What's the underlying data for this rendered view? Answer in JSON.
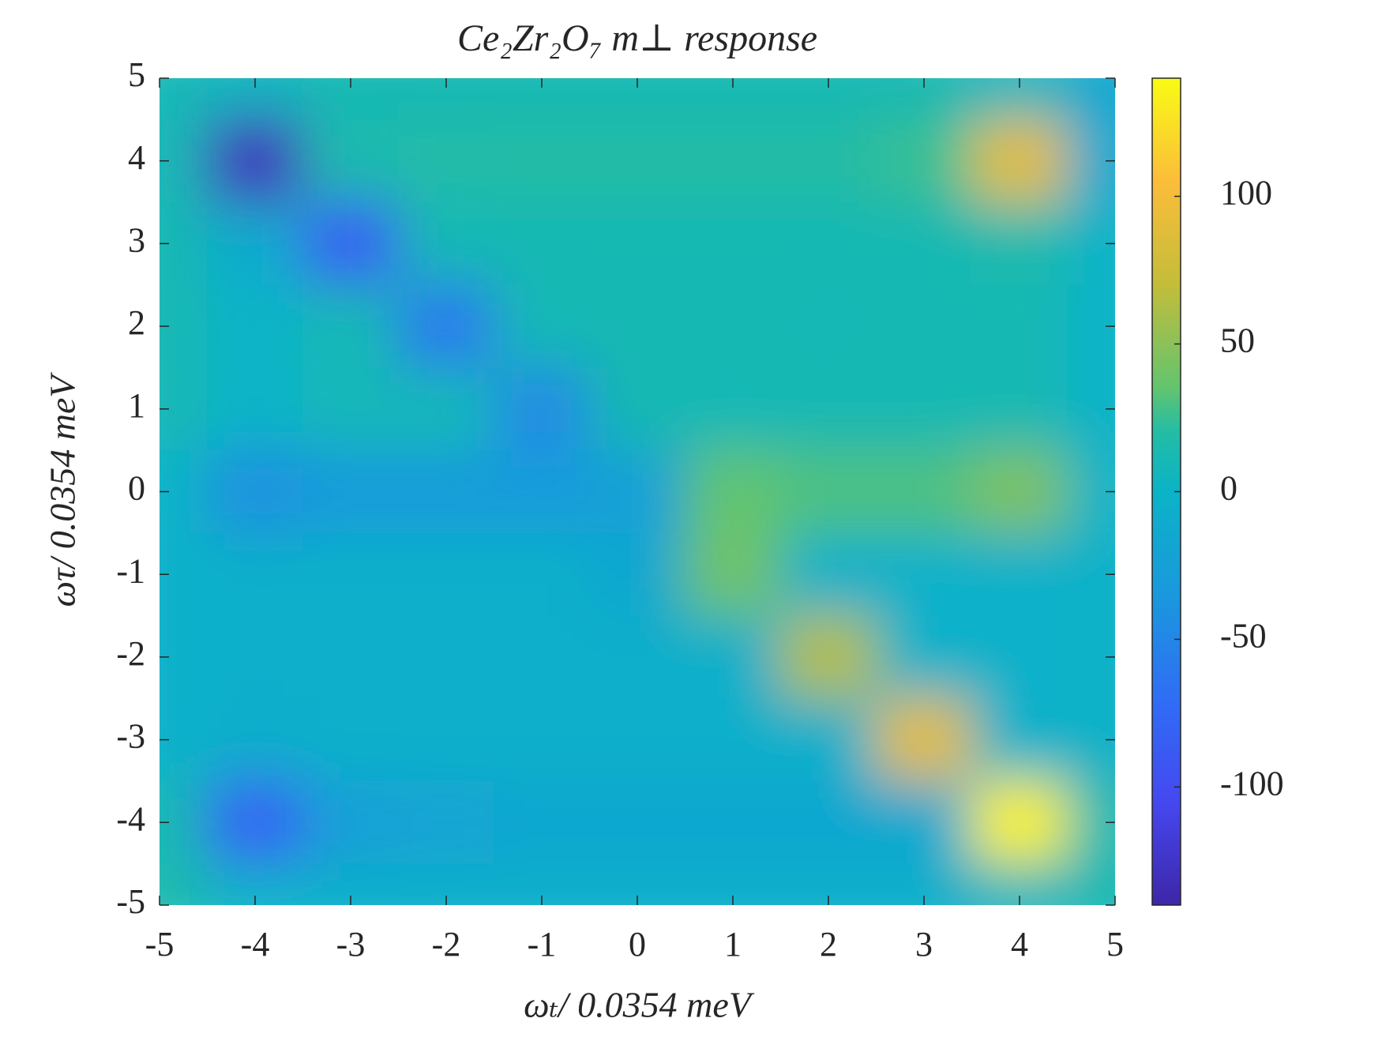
{
  "chart_data": {
    "type": "heatmap",
    "title": "Ce₂Zr₂O₇ m⊥ response",
    "x_label": "ωₜ/ 0.0354 meV",
    "y_label": "ωτ/ 0.0354 meV",
    "x": [
      -5,
      -4,
      -3,
      -2,
      -1,
      0,
      1,
      2,
      3,
      4,
      5
    ],
    "y": [
      5,
      4,
      3,
      2,
      1,
      0,
      -1,
      -2,
      -3,
      -4,
      -5
    ],
    "z": [
      [
        10,
        5,
        12,
        12,
        12,
        12,
        12,
        12,
        12,
        5,
        -15
      ],
      [
        10,
        -130,
        15,
        18,
        20,
        20,
        20,
        20,
        25,
        90,
        -15
      ],
      [
        12,
        -10,
        -85,
        10,
        12,
        12,
        12,
        12,
        12,
        15,
        0
      ],
      [
        12,
        0,
        10,
        -60,
        10,
        12,
        12,
        10,
        12,
        12,
        0
      ],
      [
        10,
        0,
        8,
        8,
        -45,
        12,
        10,
        12,
        12,
        12,
        0
      ],
      [
        0,
        -40,
        -30,
        -30,
        -30,
        -25,
        35,
        30,
        30,
        45,
        0
      ],
      [
        -3,
        -5,
        -5,
        -5,
        -5,
        -15,
        40,
        -3,
        -3,
        -3,
        -2
      ],
      [
        -3,
        -5,
        -5,
        -5,
        -5,
        -5,
        -5,
        65,
        -3,
        -3,
        -2
      ],
      [
        -3,
        -8,
        -5,
        -5,
        -5,
        -5,
        -5,
        -5,
        90,
        -3,
        -2
      ],
      [
        12,
        -80,
        -25,
        -20,
        -15,
        -15,
        -15,
        -15,
        -15,
        135,
        12
      ],
      [
        15,
        0,
        -5,
        -5,
        -5,
        -5,
        -5,
        -5,
        -5,
        5,
        12
      ]
    ],
    "xlim": [
      -5,
      5
    ],
    "ylim": [
      -5,
      5
    ],
    "xticks": [
      -5,
      -4,
      -3,
      -2,
      -1,
      0,
      1,
      2,
      3,
      4,
      5
    ],
    "yticks": [
      -5,
      -4,
      -3,
      -2,
      -1,
      0,
      1,
      2,
      3,
      4,
      5
    ],
    "clim": [
      -140,
      140
    ],
    "cticks": [
      -100,
      -50,
      0,
      50,
      100
    ],
    "colormap": "parula"
  }
}
